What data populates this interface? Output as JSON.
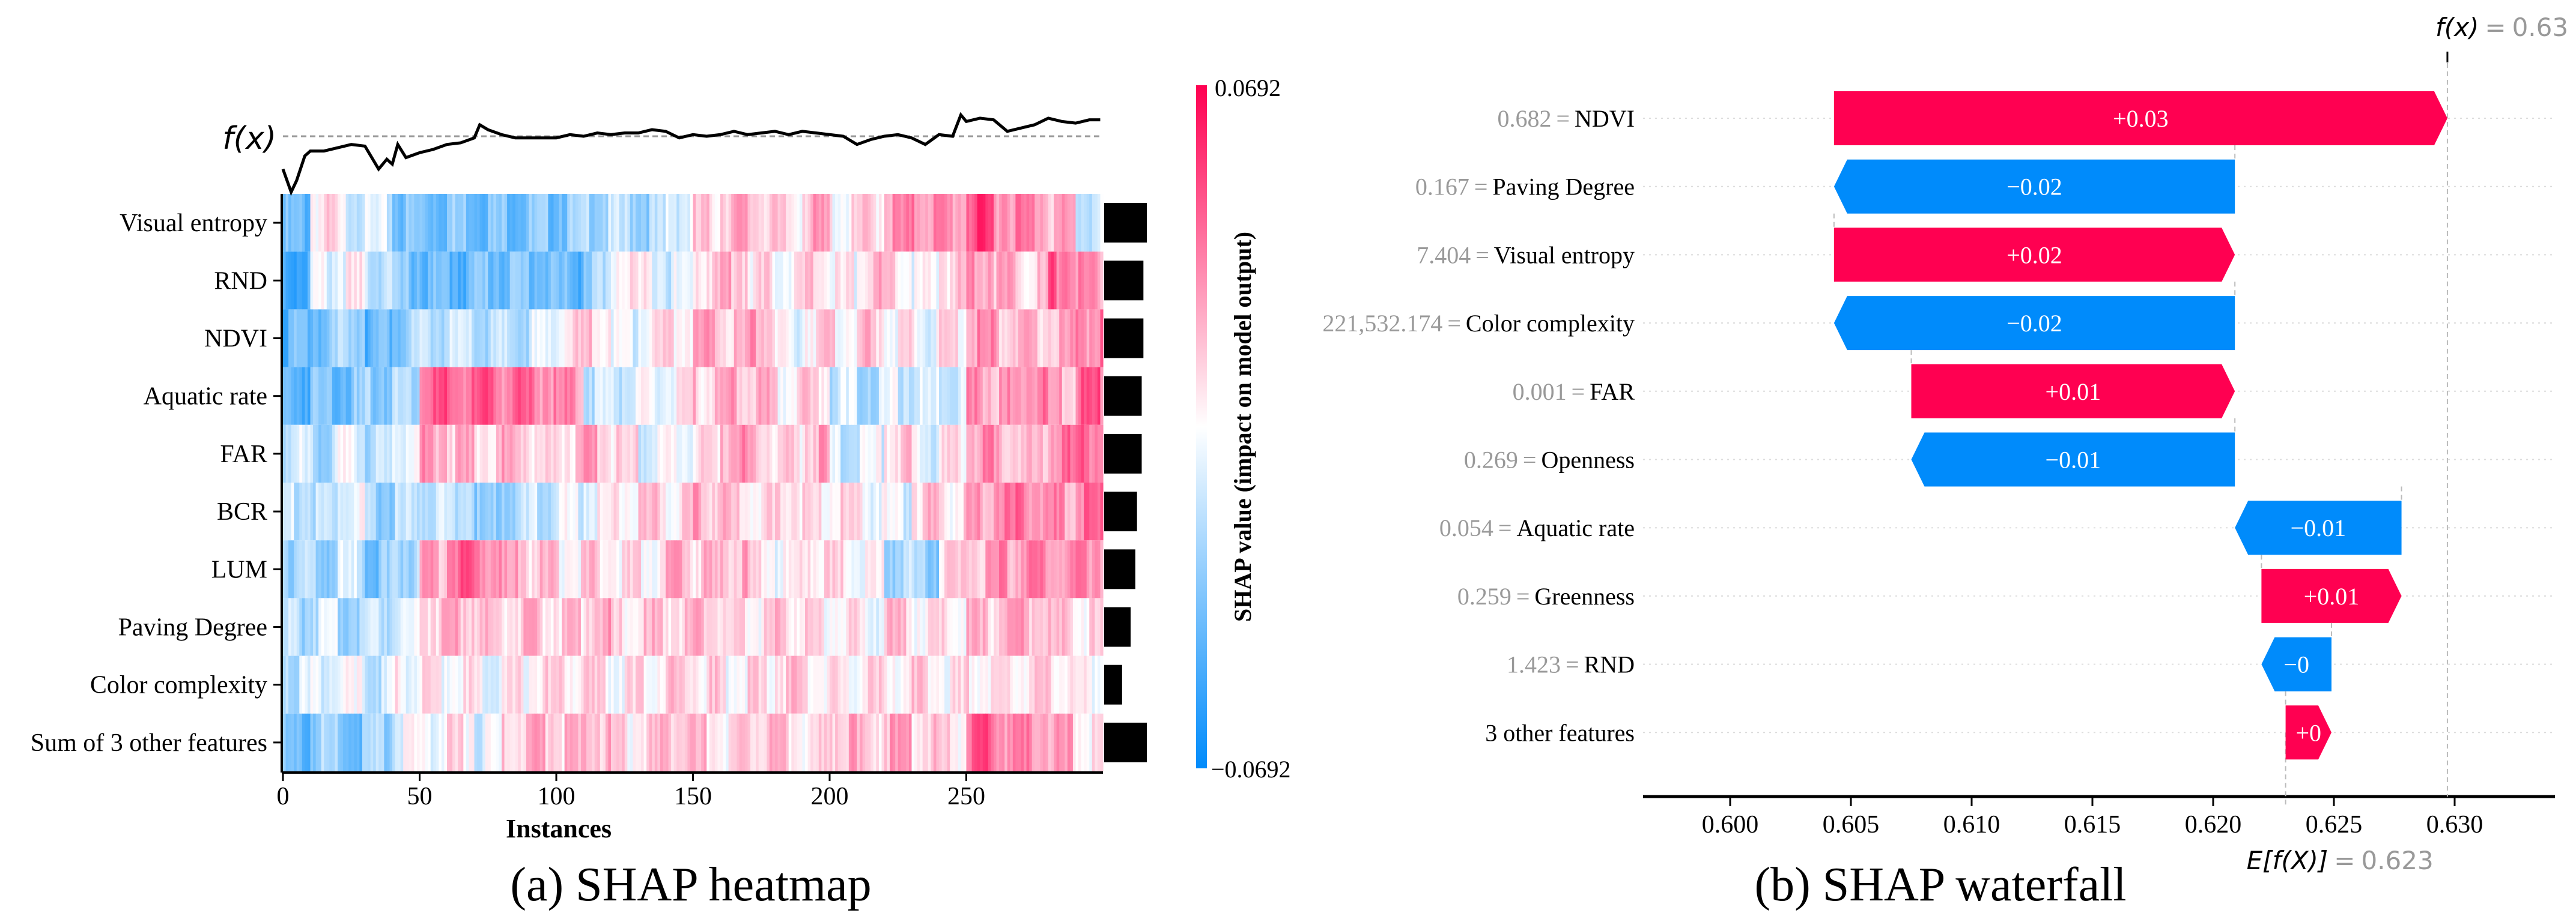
{
  "chart_data": [
    {
      "type": "heatmap",
      "caption": "(a)  SHAP heatmap",
      "xlabel": "Instances",
      "x_ticks": [
        "0",
        "50",
        "100",
        "150",
        "200",
        "250"
      ],
      "x_tick_values": [
        0,
        50,
        100,
        150,
        200,
        250
      ],
      "n_instances": 300,
      "bin_size": 10,
      "fx_label": "f(x)",
      "features": [
        "Visual entropy",
        "RND",
        "NDVI",
        "Aquatic rate",
        "FAR",
        "BCR",
        "LUM",
        "Paving Degree",
        "Color complexity",
        "Sum of 3 other features"
      ],
      "values_relative_to_max": [
        [
          -0.6,
          0.1,
          -0.1,
          -0.2,
          -0.5,
          -0.5,
          -0.45,
          -0.5,
          -0.5,
          -0.5,
          -0.45,
          -0.3,
          -0.3,
          -0.35,
          -0.1,
          0.15,
          0.3,
          0.25,
          0.1,
          0.3,
          0.05,
          0.15,
          0.4,
          0.45,
          0.4,
          0.7,
          0.5,
          0.45,
          0.3,
          -0.2
        ],
        [
          -0.7,
          -0.1,
          0.0,
          -0.2,
          -0.5,
          -0.6,
          -0.6,
          -0.5,
          -0.5,
          -0.5,
          -0.6,
          -0.4,
          0.1,
          0.0,
          -0.15,
          0.2,
          0.3,
          0.1,
          0.05,
          0.15,
          0.0,
          0.25,
          0.1,
          -0.05,
          0.2,
          0.45,
          0.3,
          0.2,
          0.6,
          0.4
        ],
        [
          -0.6,
          -0.5,
          -0.3,
          -0.6,
          -0.4,
          -0.25,
          -0.25,
          -0.3,
          -0.3,
          -0.15,
          0.1,
          0.2,
          -0.1,
          0.1,
          0.15,
          0.3,
          0.2,
          0.35,
          -0.1,
          0.15,
          0.1,
          0.2,
          0.05,
          -0.05,
          0.1,
          0.4,
          0.3,
          0.2,
          0.3,
          0.5
        ],
        [
          -0.6,
          -0.5,
          -0.5,
          -0.4,
          -0.3,
          0.6,
          0.55,
          0.6,
          0.55,
          0.5,
          0.4,
          -0.2,
          -0.15,
          -0.1,
          0.0,
          0.2,
          0.3,
          0.25,
          0.1,
          0.15,
          -0.2,
          -0.25,
          -0.15,
          -0.2,
          -0.1,
          0.4,
          0.35,
          0.5,
          0.3,
          0.6
        ],
        [
          -0.2,
          -0.3,
          -0.1,
          -0.3,
          0.0,
          0.4,
          0.25,
          0.2,
          0.3,
          0.1,
          0.2,
          0.3,
          0.1,
          -0.1,
          0.0,
          0.1,
          0.4,
          0.2,
          0.1,
          0.3,
          -0.2,
          -0.1,
          0.2,
          -0.1,
          0.1,
          0.4,
          0.3,
          0.2,
          0.5,
          0.6
        ],
        [
          -0.2,
          -0.3,
          -0.1,
          -0.4,
          -0.3,
          -0.2,
          -0.2,
          -0.5,
          -0.3,
          -0.2,
          -0.1,
          0.0,
          0.1,
          0.2,
          0.1,
          0.3,
          0.2,
          0.1,
          0.2,
          0.1,
          0.1,
          0.0,
          -0.1,
          0.2,
          0.1,
          0.3,
          0.5,
          0.5,
          0.4,
          0.5
        ],
        [
          -0.3,
          -0.4,
          -0.2,
          -0.5,
          -0.3,
          0.3,
          0.6,
          0.5,
          0.3,
          0.2,
          0.1,
          0.2,
          0.1,
          0.1,
          0.3,
          0.2,
          0.3,
          0.1,
          0.0,
          0.2,
          0.1,
          0.0,
          -0.3,
          -0.4,
          0.1,
          0.3,
          0.4,
          0.5,
          0.4,
          0.5
        ],
        [
          -0.3,
          -0.2,
          -0.3,
          -0.2,
          -0.1,
          0.25,
          0.3,
          0.2,
          0.2,
          0.2,
          0.2,
          0.3,
          0.1,
          0.2,
          0.2,
          0.25,
          0.1,
          0.1,
          0.2,
          0.1,
          0.1,
          0.0,
          0.2,
          0.1,
          0.1,
          0.2,
          0.3,
          0.3,
          0.2,
          0.1
        ],
        [
          -0.2,
          -0.1,
          -0.1,
          -0.2,
          0.0,
          0.05,
          0.05,
          0.0,
          0.05,
          0.1,
          0.15,
          0.1,
          0.05,
          0.1,
          0.2,
          0.15,
          0.05,
          0.1,
          0.2,
          0.1,
          0.05,
          0.1,
          0.1,
          0.15,
          0.05,
          0.1,
          0.15,
          0.1,
          0.1,
          0.0
        ],
        [
          -0.6,
          -0.4,
          -0.5,
          -0.4,
          -0.1,
          0.0,
          0.1,
          -0.1,
          0.2,
          0.3,
          0.2,
          0.3,
          0.1,
          0.2,
          0.3,
          0.2,
          0.1,
          0.3,
          0.2,
          0.1,
          0.3,
          0.2,
          0.3,
          0.2,
          0.1,
          0.6,
          0.5,
          0.4,
          0.3,
          0.1
        ]
      ],
      "mean_abs_shap_relative": [
        1.0,
        0.92,
        0.92,
        0.88,
        0.88,
        0.77,
        0.73,
        0.62,
        0.42,
        1.0
      ],
      "fx_curve": {
        "instances": [
          0,
          3,
          5,
          8,
          10,
          15,
          20,
          25,
          30,
          35,
          38,
          40,
          42,
          45,
          50,
          55,
          60,
          65,
          70,
          72,
          75,
          80,
          85,
          90,
          100,
          105,
          110,
          115,
          120,
          125,
          130,
          135,
          140,
          145,
          150,
          155,
          160,
          165,
          170,
          175,
          180,
          185,
          190,
          195,
          200,
          205,
          210,
          215,
          220,
          225,
          230,
          235,
          240,
          245,
          248,
          250,
          255,
          260,
          265,
          270,
          275,
          280,
          285,
          290,
          295,
          299
        ],
        "offset_from_baseline": [
          -20,
          -34,
          -27,
          -12,
          -9,
          -9,
          -7,
          -5,
          -6,
          -20,
          -14,
          -17,
          -5,
          -13,
          -10,
          -8,
          -5,
          -4,
          -1,
          7,
          4,
          1,
          -1,
          -1,
          -1,
          1,
          0,
          2,
          1,
          2,
          2,
          4,
          3,
          -1,
          1,
          0,
          1,
          3,
          1,
          2,
          3,
          1,
          3,
          2,
          1,
          0,
          -5,
          -2,
          0,
          1,
          -1,
          -5,
          1,
          0,
          13,
          9,
          11,
          10,
          3,
          5,
          7,
          11,
          9,
          8,
          10,
          10
        ]
      },
      "colorbar": {
        "label": "SHAP value (impact on model output)",
        "max_label": "0.0692",
        "min_label": "−0.0692",
        "vmin": -0.0692,
        "vmax": 0.0692
      },
      "colors": {
        "positive": "#ff0051",
        "negative": "#008bfb"
      }
    },
    {
      "type": "bar",
      "subtype": "waterfall",
      "caption": "(b)  SHAP waterfall",
      "fx_label": "f(x)",
      "fx_value": "0.63",
      "fx": 0.6297,
      "efx_label": "E[f(X)]",
      "efx_value": "0.623",
      "efx": 0.623,
      "xlim": [
        0.5964,
        0.6342
      ],
      "x_ticks": [
        "0.600",
        "0.605",
        "0.610",
        "0.615",
        "0.620",
        "0.625",
        "0.630"
      ],
      "x_tick_values": [
        0.6,
        0.605,
        0.61,
        0.615,
        0.62,
        0.625,
        0.63
      ],
      "rows": [
        {
          "value": "0.682",
          "feature": "NDVI",
          "label": "+0.03",
          "start": 0.6043,
          "end": 0.6297
        },
        {
          "value": "0.167",
          "feature": "Paving Degree",
          "label": "−0.02",
          "start": 0.6209,
          "end": 0.6043
        },
        {
          "value": "7.404",
          "feature": "Visual entropy",
          "label": "+0.02",
          "start": 0.6043,
          "end": 0.6209
        },
        {
          "value": "221,532.174",
          "feature": "Color complexity",
          "label": "−0.02",
          "start": 0.6209,
          "end": 0.6043
        },
        {
          "value": "0.001",
          "feature": "FAR",
          "label": "+0.01",
          "start": 0.6075,
          "end": 0.6209
        },
        {
          "value": "0.269",
          "feature": "Openness",
          "label": "−0.01",
          "start": 0.6209,
          "end": 0.6075
        },
        {
          "value": "0.054",
          "feature": "Aquatic rate",
          "label": "−0.01",
          "start": 0.6278,
          "end": 0.6209
        },
        {
          "value": "0.259",
          "feature": "Greenness",
          "label": "+0.01",
          "start": 0.622,
          "end": 0.6278
        },
        {
          "value": "1.423",
          "feature": "RND",
          "label": "−0",
          "start": 0.6249,
          "end": 0.622
        },
        {
          "value": "",
          "feature": "3 other features",
          "label": "+0",
          "start": 0.623,
          "end": 0.6249
        }
      ],
      "equals": "=",
      "colors": {
        "positive": "#ff0051",
        "negative": "#008bfb"
      }
    }
  ]
}
